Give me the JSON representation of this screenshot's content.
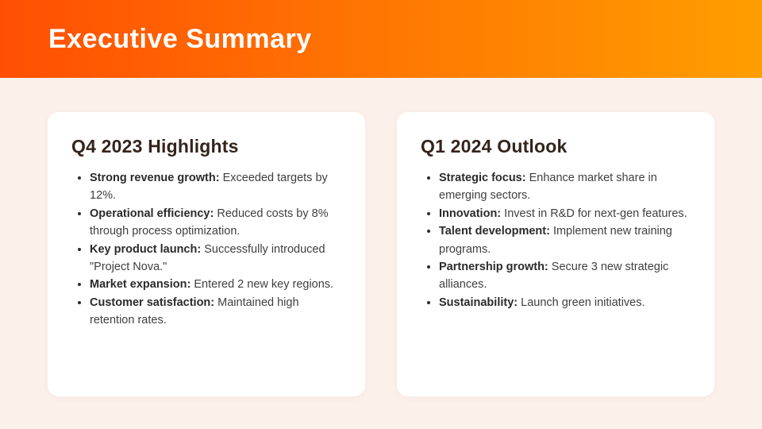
{
  "page": {
    "title": "Executive Summary"
  },
  "colors": {
    "header_gradient_start": "#FF4F03",
    "header_gradient_end": "#FF9E00",
    "page_background": "#FCF0EB",
    "card_background": "#FFFFFF",
    "title_text": "#FFFDFC",
    "heading_text": "#35241C",
    "body_text": "#3F3F3F"
  },
  "cards": [
    {
      "title": "Q4 2023 Highlights",
      "items": [
        {
          "label": "Strong revenue growth:",
          "text": "Exceeded targets by 12%."
        },
        {
          "label": "Operational efficiency:",
          "text": "Reduced costs by 8% through process optimization."
        },
        {
          "label": "Key product launch:",
          "text": "Successfully introduced \"Project Nova.\""
        },
        {
          "label": "Market expansion:",
          "text": "Entered 2 new key regions."
        },
        {
          "label": "Customer satisfaction:",
          "text": "Maintained high retention rates."
        }
      ]
    },
    {
      "title": "Q1 2024 Outlook",
      "items": [
        {
          "label": "Strategic focus:",
          "text": "Enhance market share in emerging sectors."
        },
        {
          "label": "Innovation:",
          "text": "Invest in R&D for next-gen features."
        },
        {
          "label": "Talent development:",
          "text": "Implement new training programs."
        },
        {
          "label": "Partnership growth:",
          "text": "Secure 3 new strategic alliances."
        },
        {
          "label": "Sustainability:",
          "text": "Launch green initiatives."
        }
      ]
    }
  ]
}
